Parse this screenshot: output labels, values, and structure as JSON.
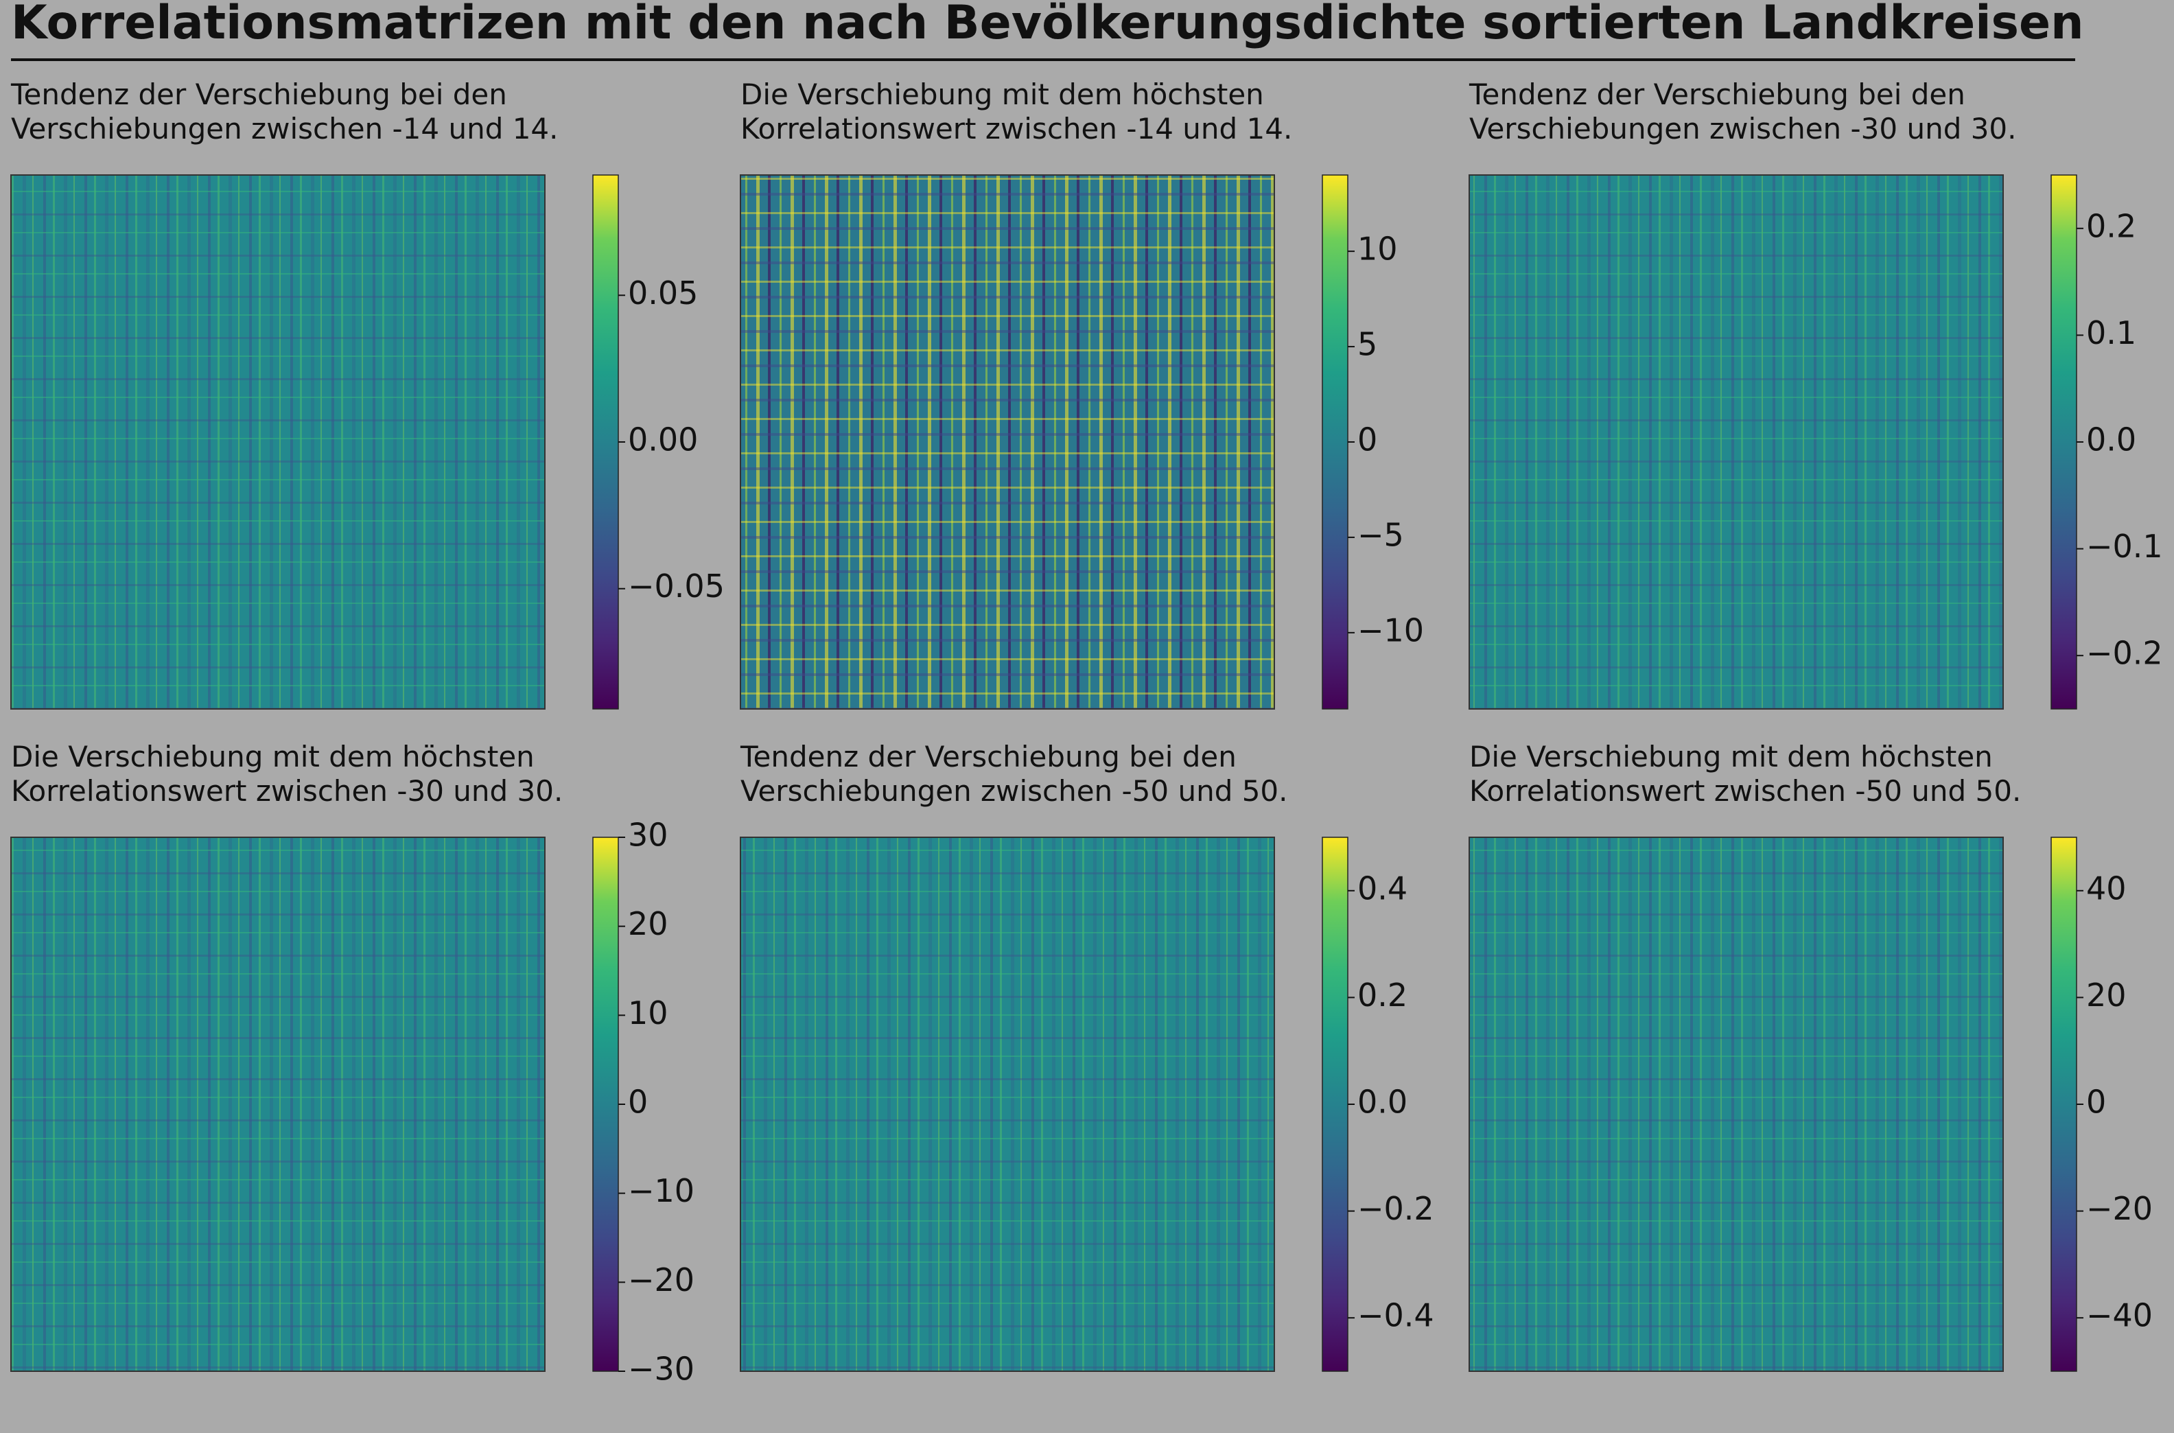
{
  "title": "Korrelationsmatrizen mit den nach Bevölkerungsdichte sortierten Landkreisen",
  "chart_data": [
    {
      "type": "heatmap",
      "title": [
        "Tendenz der Verschiebung bei den",
        "Verschiebungen zwischen -14 und 14."
      ],
      "colormap": "viridis",
      "clim": [
        -0.091,
        0.091
      ],
      "cticks": [
        {
          "value": -0.05,
          "label": "−0.05"
        },
        {
          "value": 0,
          "label": "0.00"
        },
        0.05
      ]
    },
    {
      "type": "heatmap",
      "title": [
        "Die Verschiebung mit dem höchsten",
        "Korrelationswert zwischen -14 und 14."
      ],
      "colormap": "viridis",
      "clim": [
        -14,
        14
      ],
      "cticks": [
        {
          "value": -10,
          "label": "−10"
        },
        {
          "value": -5,
          "label": "−5"
        },
        0,
        5,
        10
      ]
    },
    {
      "type": "heatmap",
      "title": [
        "Tendenz der Verschiebung bei den",
        "Verschiebungen zwischen -30 und 30."
      ],
      "colormap": "viridis",
      "clim": [
        -0.25,
        0.25
      ],
      "cticks": [
        {
          "value": -0.2,
          "label": "−0.2"
        },
        {
          "value": -0.1,
          "label": "−0.1"
        },
        {
          "value": 0,
          "label": "0.0"
        },
        0.1,
        0.2
      ]
    },
    {
      "type": "heatmap",
      "title": [
        "Die Verschiebung mit dem höchsten",
        "Korrelationswert zwischen -30 und 30."
      ],
      "colormap": "viridis",
      "clim": [
        -30,
        30
      ],
      "cticks": [
        {
          "value": -30,
          "label": "−30"
        },
        {
          "value": -20,
          "label": "−20"
        },
        {
          "value": -10,
          "label": "−10"
        },
        0,
        10,
        20,
        30
      ]
    },
    {
      "type": "heatmap",
      "title": [
        "Tendenz der Verschiebung bei den",
        "Verschiebungen zwischen -50 und 50."
      ],
      "colormap": "viridis",
      "clim": [
        -0.5,
        0.5
      ],
      "cticks": [
        {
          "value": -0.4,
          "label": "−0.4"
        },
        {
          "value": -0.2,
          "label": "−0.2"
        },
        {
          "value": 0,
          "label": "0.0"
        },
        0.2,
        0.4
      ]
    },
    {
      "type": "heatmap",
      "title": [
        "Die Verschiebung mit dem höchsten",
        "Korrelationswert zwischen -50 und 50."
      ],
      "colormap": "viridis",
      "clim": [
        -50,
        50
      ],
      "cticks": [
        {
          "value": -40,
          "label": "−40"
        },
        {
          "value": -20,
          "label": "−20"
        },
        0,
        20,
        40
      ]
    }
  ]
}
